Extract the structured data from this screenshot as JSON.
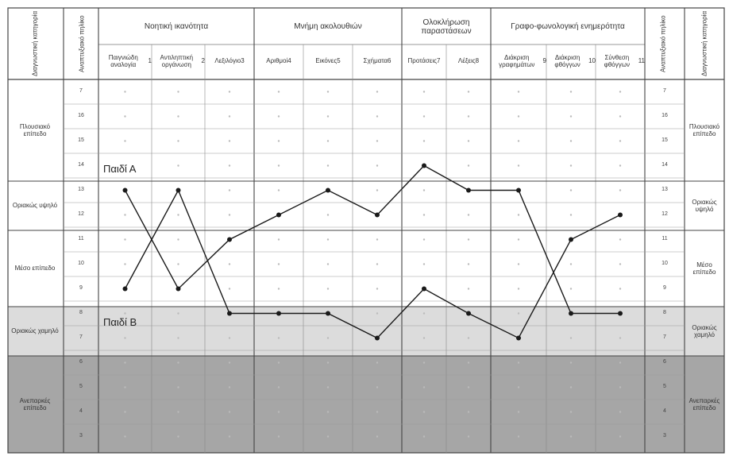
{
  "header": {
    "left_category": "Διαγνωστική κατηγορία",
    "left_score": "Αναπτυξιακό πηλίκο",
    "right_score": "Αναπτυξιακό πηλίκο",
    "right_category": "Διαγνωστική κατηγορία",
    "groups": [
      {
        "label": "Νοητική ικανότητα"
      },
      {
        "label": "Μνήμη ακολουθιών"
      },
      {
        "label": "Ολοκλήρωση παραστάσεων"
      },
      {
        "label": "Γραφο-φωνολογική ενημερότητα"
      }
    ],
    "subtests": [
      {
        "name": "Παιγνιώδη αναλογία",
        "num": "1"
      },
      {
        "name": "Αντιληπτική οργάνωση",
        "num": "2"
      },
      {
        "name": "Λεξιλόγιο",
        "num": "3"
      },
      {
        "name": "Αριθμοί",
        "num": "4"
      },
      {
        "name": "Εικόνες",
        "num": "5"
      },
      {
        "name": "Σχήματα",
        "num": "6"
      },
      {
        "name": "Προτάσεις",
        "num": "7"
      },
      {
        "name": "Λέξεις",
        "num": "8"
      },
      {
        "name": "Διάκριση γραφημάτων",
        "num": "9"
      },
      {
        "name": "Διάκριση φθόγγων",
        "num": "10"
      },
      {
        "name": "Σύνθεση φθόγγων",
        "num": "11"
      }
    ]
  },
  "categories": [
    {
      "label": "Πλουσιακό επίπεδο"
    },
    {
      "label": "Οριακώς υψηλό"
    },
    {
      "label": "Μέσο επίπεδο"
    },
    {
      "label": "Οριακώς χαμηλό"
    },
    {
      "label": "Ανεπαρκές επίπεδο"
    }
  ],
  "rows": [
    "7",
    "16",
    "15",
    "14",
    "13",
    "12",
    "11",
    "10",
    "9",
    "8",
    "7",
    "6",
    "5",
    "4",
    "3"
  ],
  "children": {
    "a": "Παιδί Α",
    "b": "Παιδί Β"
  },
  "chart_data": {
    "type": "line",
    "categories": [
      "1",
      "2",
      "3",
      "4",
      "5",
      "6",
      "7",
      "8",
      "9",
      "10",
      "11"
    ],
    "series": [
      {
        "name": "Παιδί Α",
        "values": [
          13,
          9,
          11,
          12,
          13,
          12,
          14,
          13,
          13,
          8,
          8
        ]
      },
      {
        "name": "Παιδί Β",
        "values": [
          9,
          13,
          8,
          8,
          8,
          7,
          9,
          8,
          7,
          11,
          12
        ]
      }
    ],
    "ylim": [
      3,
      16
    ],
    "colors": {
      "band_low": "#dcdcdc",
      "band_poor": "#a6a6a6",
      "line": "#1a1a1a"
    }
  }
}
